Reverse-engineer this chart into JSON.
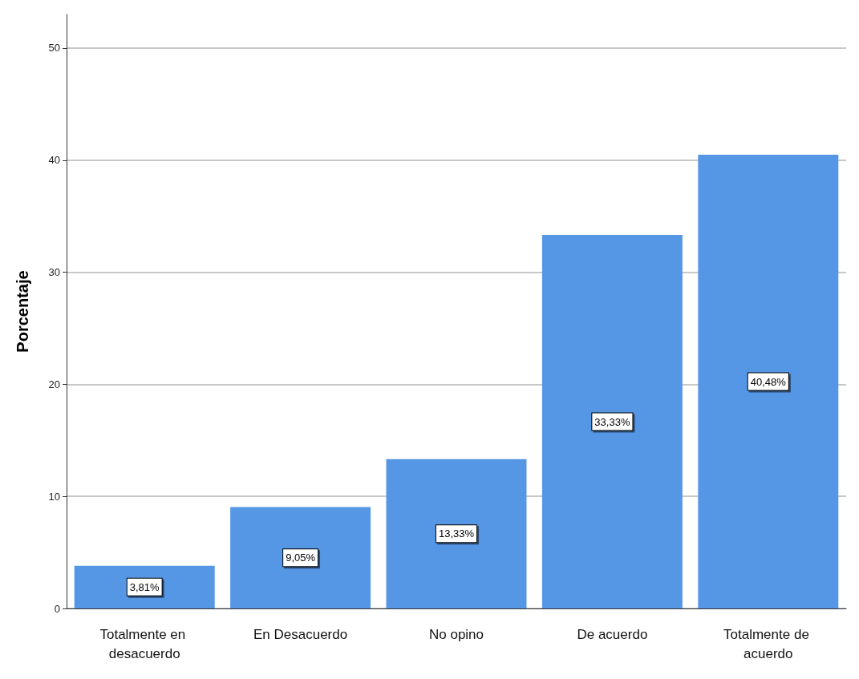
{
  "chart_data": {
    "type": "bar",
    "ylabel": "Porcentaje",
    "categories": [
      "Totalmente en desacuerdo",
      "En Desacuerdo",
      "No opino",
      "De acuerdo",
      "Totalmente de acuerdo"
    ],
    "values": [
      3.81,
      9.05,
      13.33,
      33.33,
      40.48
    ],
    "value_labels": [
      "3,81%",
      "9,05%",
      "13,33%",
      "33,33%",
      "40,48%"
    ],
    "color": "#5596e5",
    "ylim": [
      0,
      53
    ],
    "yticks": [
      0,
      10,
      20,
      30,
      40,
      50
    ],
    "grid": "y"
  }
}
